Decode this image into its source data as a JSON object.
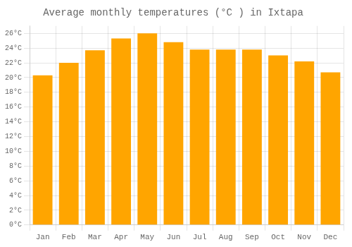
{
  "chart_data": {
    "type": "bar",
    "title": "Average monthly temperatures (°C ) in Ixtapa",
    "categories": [
      "Jan",
      "Feb",
      "Mar",
      "Apr",
      "May",
      "Jun",
      "Jul",
      "Aug",
      "Sep",
      "Oct",
      "Nov",
      "Dec"
    ],
    "values": [
      20.3,
      22.0,
      23.7,
      25.3,
      26.0,
      24.8,
      23.8,
      23.8,
      23.8,
      23.0,
      22.2,
      20.7
    ],
    "color": "#FFA500",
    "ylim": [
      0,
      27
    ],
    "yticks": [
      {
        "value": 0,
        "label": "0°C"
      },
      {
        "value": 2,
        "label": "2°C"
      },
      {
        "value": 4,
        "label": "4°C"
      },
      {
        "value": 6,
        "label": "6°C"
      },
      {
        "value": 8,
        "label": "8°C"
      },
      {
        "value": 10,
        "label": "10°C"
      },
      {
        "value": 12,
        "label": "12°C"
      },
      {
        "value": 14,
        "label": "14°C"
      },
      {
        "value": 16,
        "label": "16°C"
      },
      {
        "value": 18,
        "label": "18°C"
      },
      {
        "value": 20,
        "label": "20°C"
      },
      {
        "value": 22,
        "label": "22°C"
      },
      {
        "value": 24,
        "label": "24°C"
      },
      {
        "value": 26,
        "label": "26°C"
      }
    ],
    "grid": true
  }
}
